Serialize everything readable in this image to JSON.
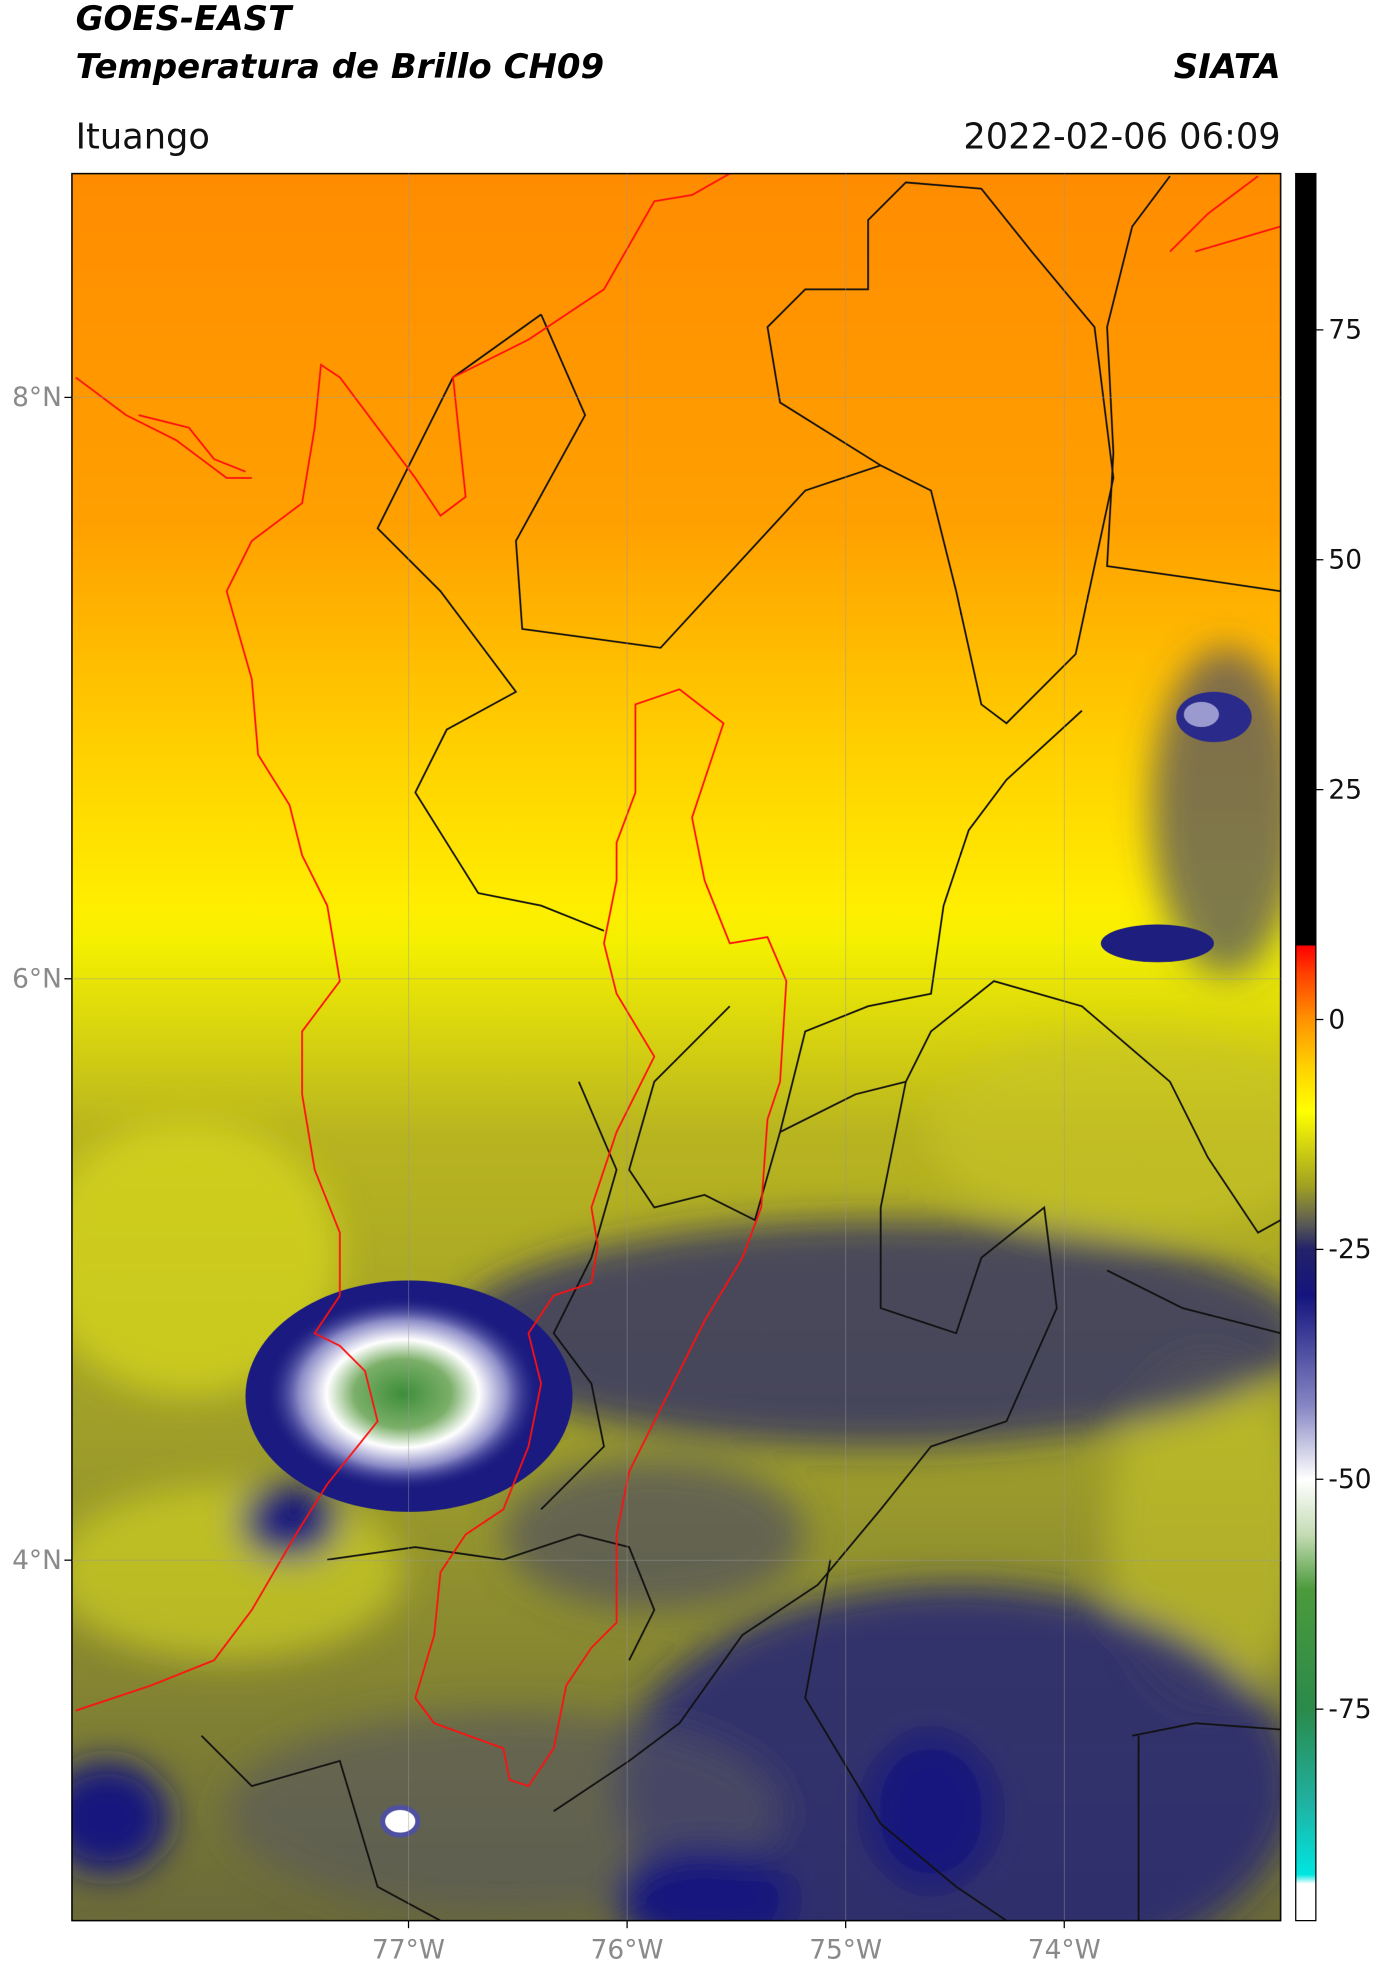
{
  "map": {
    "title": "GOES-EAST",
    "subtitle": "Temperatura de Brillo CH09",
    "source": "SIATA",
    "location": "Ituango",
    "datetime": "2022-02-06 06:09",
    "lat_lim": [
      2.76,
      8.77
    ],
    "lon_lim": [
      -78.54,
      -73.01
    ],
    "lat_ticks": [
      {
        "value": 8,
        "label": "8°N"
      },
      {
        "value": 6,
        "label": "6°N"
      },
      {
        "value": 4,
        "label": "4°N"
      }
    ],
    "lon_ticks": [
      {
        "value": -77,
        "label": "77°W"
      },
      {
        "value": -76,
        "label": "76°W"
      },
      {
        "value": -75,
        "label": "75°W"
      },
      {
        "value": -74,
        "label": "74°W"
      }
    ],
    "grid": true,
    "colorbar": {
      "lim": [
        -98,
        92
      ],
      "ticks": [
        75,
        50,
        25,
        0,
        -25,
        -50,
        -75
      ],
      "colormap": [
        {
          "value": -98,
          "color": "#ffffff"
        },
        {
          "value": -94,
          "color": "#ffffff"
        },
        {
          "value": -93,
          "color": "#00e6e0"
        },
        {
          "value": -85,
          "color": "#20b0a0"
        },
        {
          "value": -75,
          "color": "#2a8a4a"
        },
        {
          "value": -62,
          "color": "#4c9a3c"
        },
        {
          "value": -56,
          "color": "#c4dcb4"
        },
        {
          "value": -50,
          "color": "#ffffff"
        },
        {
          "value": -42,
          "color": "#8686c4"
        },
        {
          "value": -30,
          "color": "#14147e"
        },
        {
          "value": -25,
          "color": "#22226a"
        },
        {
          "value": -22,
          "color": "#5e5e52"
        },
        {
          "value": -18,
          "color": "#a2a222"
        },
        {
          "value": -10,
          "color": "#ffff00"
        },
        {
          "value": -5,
          "color": "#ffd000"
        },
        {
          "value": 0,
          "color": "#ff9200"
        },
        {
          "value": 5,
          "color": "#ff4000"
        },
        {
          "value": 8,
          "color": "#ff0000"
        },
        {
          "value": 8.1,
          "color": "#000000"
        },
        {
          "value": 92,
          "color": "#000000"
        }
      ]
    }
  }
}
